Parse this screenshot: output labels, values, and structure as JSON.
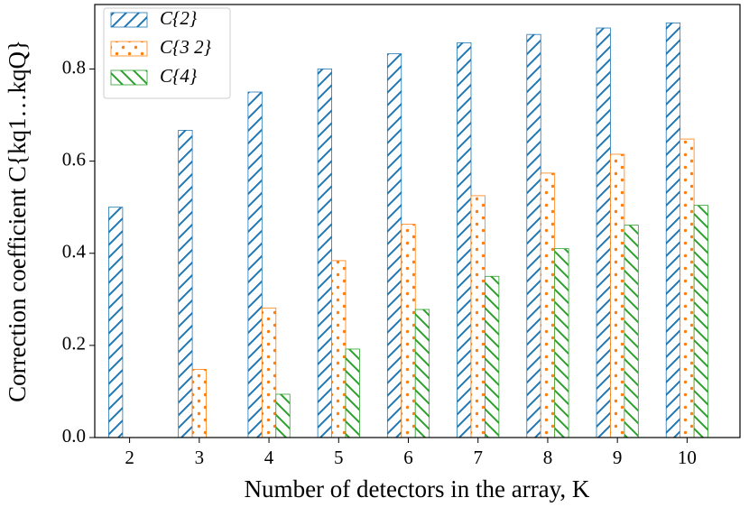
{
  "chart_data": {
    "type": "bar",
    "x_label": "Number of detectors in the array, K",
    "y_label": "Correction coefficient C{kq1…kqQ}",
    "categories": [
      "2",
      "3",
      "4",
      "5",
      "6",
      "7",
      "8",
      "9",
      "10"
    ],
    "series": [
      {
        "name": "C{2}",
        "color": "#1f77b4",
        "hatch": "/",
        "values": [
          0.5,
          0.667,
          0.75,
          0.8,
          0.833,
          0.857,
          0.875,
          0.889,
          0.9
        ]
      },
      {
        "name": "C{3 2}",
        "color": "#ff7f0e",
        "hatch": ".",
        "values": [
          null,
          0.148,
          0.281,
          0.384,
          0.463,
          0.525,
          0.574,
          0.615,
          0.648
        ]
      },
      {
        "name": "C{4}",
        "color": "#2ca02c",
        "hatch": "\\",
        "values": [
          null,
          null,
          0.094,
          0.192,
          0.278,
          0.35,
          0.41,
          0.461,
          0.504
        ]
      }
    ],
    "ylim": [
      0,
      0.94
    ],
    "yticks": [
      {
        "value": 0,
        "label": "0.0"
      },
      0.2,
      0.4,
      0.6,
      0.8
    ],
    "legend": "upper left"
  }
}
